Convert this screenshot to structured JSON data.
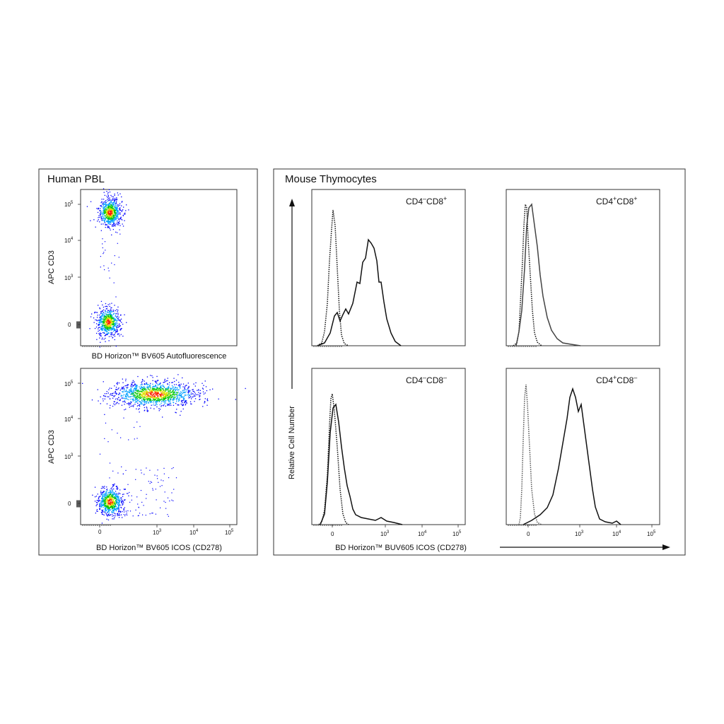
{
  "figure": {
    "left_panel": {
      "title": "Human PBL",
      "y_axis_label": "APC  CD3",
      "x_axis_label_top": "BD Horizon™  BV605 Autofluorescence",
      "x_axis_label_bottom": "BD Horizon™  BV605 ICOS (CD278)"
    },
    "right_panel": {
      "title": "Mouse Thymocytes",
      "y_axis_label": "Relative Cell Number",
      "x_axis_label": "BD Horizon™  BUV605 ICOS (CD278)"
    },
    "colors": {
      "density_low": "#0000ff",
      "density_mid": "#00c800",
      "density_high": "#ff2000",
      "stained_line": "#111111",
      "control_line": "#111111",
      "frame": "#333333"
    }
  },
  "chart_data": [
    {
      "type": "scatter",
      "panel": "Human PBL - top",
      "xlabel": "BD Horizon™  BV605 Autofluorescence",
      "ylabel": "APC  CD3",
      "x_scale": "biexponential",
      "y_scale": "biexponential",
      "yticks": [
        "0",
        "10^3",
        "10^4",
        "10^5"
      ],
      "xticks": [],
      "populations": [
        {
          "x_center": 50,
          "y_center": 60000,
          "relative_size": "large",
          "density": "high"
        },
        {
          "x_center": 0,
          "y_center": 0,
          "relative_size": "large",
          "density": "medium"
        }
      ]
    },
    {
      "type": "scatter",
      "panel": "Human PBL - bottom",
      "xlabel": "BD Horizon™  BV605 ICOS (CD278)",
      "ylabel": "APC  CD3",
      "x_scale": "biexponential",
      "y_scale": "biexponential",
      "yticks": [
        "0",
        "10^3",
        "10^4",
        "10^5"
      ],
      "xticks": [
        "0",
        "10^3",
        "10^4",
        "10^5"
      ],
      "populations": [
        {
          "x_center": 800,
          "y_center": 60000,
          "relative_size": "large",
          "density": "high"
        },
        {
          "x_center": 0,
          "y_center": 0,
          "relative_size": "large",
          "density": "medium"
        }
      ]
    },
    {
      "type": "line",
      "panel": "CD4-CD8+",
      "label_parts": [
        "CD4",
        "–",
        "CD8",
        "+"
      ],
      "xticks": [],
      "series": [
        {
          "style": "dotted",
          "peak_x": 0
        },
        {
          "style": "solid",
          "peak_x": 400
        }
      ]
    },
    {
      "type": "line",
      "panel": "CD4+CD8+",
      "label_parts": [
        "CD4",
        "+",
        "CD8",
        "+"
      ],
      "xticks": [],
      "series": [
        {
          "style": "dotted",
          "peak_x": 0
        },
        {
          "style": "solid",
          "peak_x": 50
        }
      ]
    },
    {
      "type": "line",
      "panel": "CD4-CD8-",
      "label_parts": [
        "CD4",
        "–",
        "CD8",
        "–"
      ],
      "xticks": [
        "0",
        "10^3",
        "10^4",
        "10^5"
      ],
      "series": [
        {
          "style": "dotted",
          "peak_x": 0
        },
        {
          "style": "solid",
          "peak_x": 60
        }
      ]
    },
    {
      "type": "line",
      "panel": "CD4+CD8-",
      "label_parts": [
        "CD4",
        "+",
        "CD8",
        "–"
      ],
      "xticks": [
        "0",
        "10^3",
        "10^4",
        "10^5"
      ],
      "series": [
        {
          "style": "dotted",
          "peak_x": 0
        },
        {
          "style": "solid",
          "peak_x": 900
        }
      ]
    }
  ]
}
